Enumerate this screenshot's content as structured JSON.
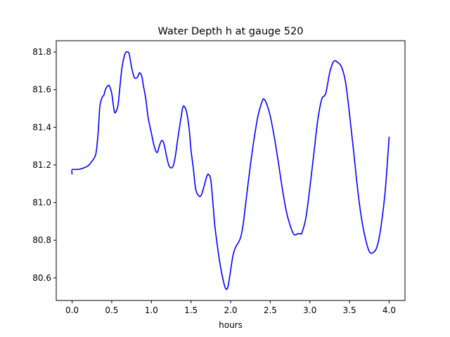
{
  "chart_data": {
    "type": "line",
    "title": "Water Depth h at gauge 520",
    "xlabel": "hours",
    "ylabel": "",
    "xlim": [
      -0.2,
      4.2
    ],
    "ylim": [
      80.48,
      81.86
    ],
    "xticks": [
      0.0,
      0.5,
      1.0,
      1.5,
      2.0,
      2.5,
      3.0,
      3.5,
      4.0
    ],
    "xtick_labels": [
      "0.0",
      "0.5",
      "1.0",
      "1.5",
      "2.0",
      "2.5",
      "3.0",
      "3.5",
      "4.0"
    ],
    "yticks": [
      80.6,
      80.8,
      81.0,
      81.2,
      81.4,
      81.6,
      81.8
    ],
    "ytick_labels": [
      "80.6",
      "80.8",
      "81.0",
      "81.2",
      "81.4",
      "81.6",
      "81.8"
    ],
    "grid": false,
    "series": [
      {
        "color": "#0000ff",
        "x": [
          0.0,
          0.0,
          0.05,
          0.1,
          0.15,
          0.2,
          0.25,
          0.3,
          0.33,
          0.35,
          0.38,
          0.4,
          0.42,
          0.45,
          0.47,
          0.5,
          0.53,
          0.55,
          0.58,
          0.6,
          0.63,
          0.66,
          0.68,
          0.7,
          0.72,
          0.75,
          0.78,
          0.8,
          0.83,
          0.85,
          0.88,
          0.9,
          0.93,
          0.96,
          1.0,
          1.03,
          1.06,
          1.08,
          1.1,
          1.13,
          1.16,
          1.2,
          1.23,
          1.27,
          1.3,
          1.33,
          1.37,
          1.4,
          1.43,
          1.45,
          1.48,
          1.5,
          1.53,
          1.56,
          1.6,
          1.63,
          1.66,
          1.7,
          1.72,
          1.75,
          1.78,
          1.8,
          1.83,
          1.86,
          1.9,
          1.93,
          1.95,
          1.97,
          2.0,
          2.03,
          2.06,
          2.1,
          2.13,
          2.16,
          2.2,
          2.25,
          2.3,
          2.35,
          2.4,
          2.42,
          2.45,
          2.5,
          2.55,
          2.6,
          2.65,
          2.7,
          2.75,
          2.8,
          2.85,
          2.88,
          2.9,
          2.95,
          3.0,
          3.05,
          3.1,
          3.15,
          3.2,
          3.25,
          3.3,
          3.35,
          3.4,
          3.45,
          3.5,
          3.55,
          3.6,
          3.65,
          3.7,
          3.75,
          3.8,
          3.85,
          3.9,
          3.95,
          4.0
        ],
        "y": [
          81.15,
          81.175,
          81.176,
          81.178,
          81.185,
          81.195,
          81.22,
          81.26,
          81.38,
          81.51,
          81.56,
          81.57,
          81.6,
          81.62,
          81.62,
          81.58,
          81.49,
          81.48,
          81.52,
          81.6,
          81.72,
          81.78,
          81.8,
          81.8,
          81.79,
          81.72,
          81.67,
          81.66,
          81.67,
          81.69,
          81.67,
          81.62,
          81.55,
          81.45,
          81.37,
          81.31,
          81.27,
          81.27,
          81.3,
          81.33,
          81.31,
          81.23,
          81.19,
          81.19,
          81.24,
          81.33,
          81.44,
          81.51,
          81.5,
          81.47,
          81.38,
          81.28,
          81.18,
          81.07,
          81.035,
          81.04,
          81.08,
          81.14,
          81.15,
          81.12,
          80.98,
          80.88,
          80.78,
          80.69,
          80.6,
          80.55,
          80.54,
          80.56,
          80.64,
          80.72,
          80.76,
          80.79,
          80.82,
          80.89,
          81.03,
          81.2,
          81.35,
          81.47,
          81.54,
          81.55,
          81.53,
          81.46,
          81.35,
          81.22,
          81.08,
          80.96,
          80.88,
          80.83,
          80.835,
          80.835,
          80.84,
          80.92,
          81.08,
          81.26,
          81.44,
          81.55,
          81.58,
          81.69,
          81.75,
          81.745,
          81.72,
          81.64,
          81.47,
          81.28,
          81.08,
          80.92,
          80.81,
          80.74,
          80.735,
          80.77,
          80.88,
          81.06,
          81.35
        ]
      }
    ]
  }
}
